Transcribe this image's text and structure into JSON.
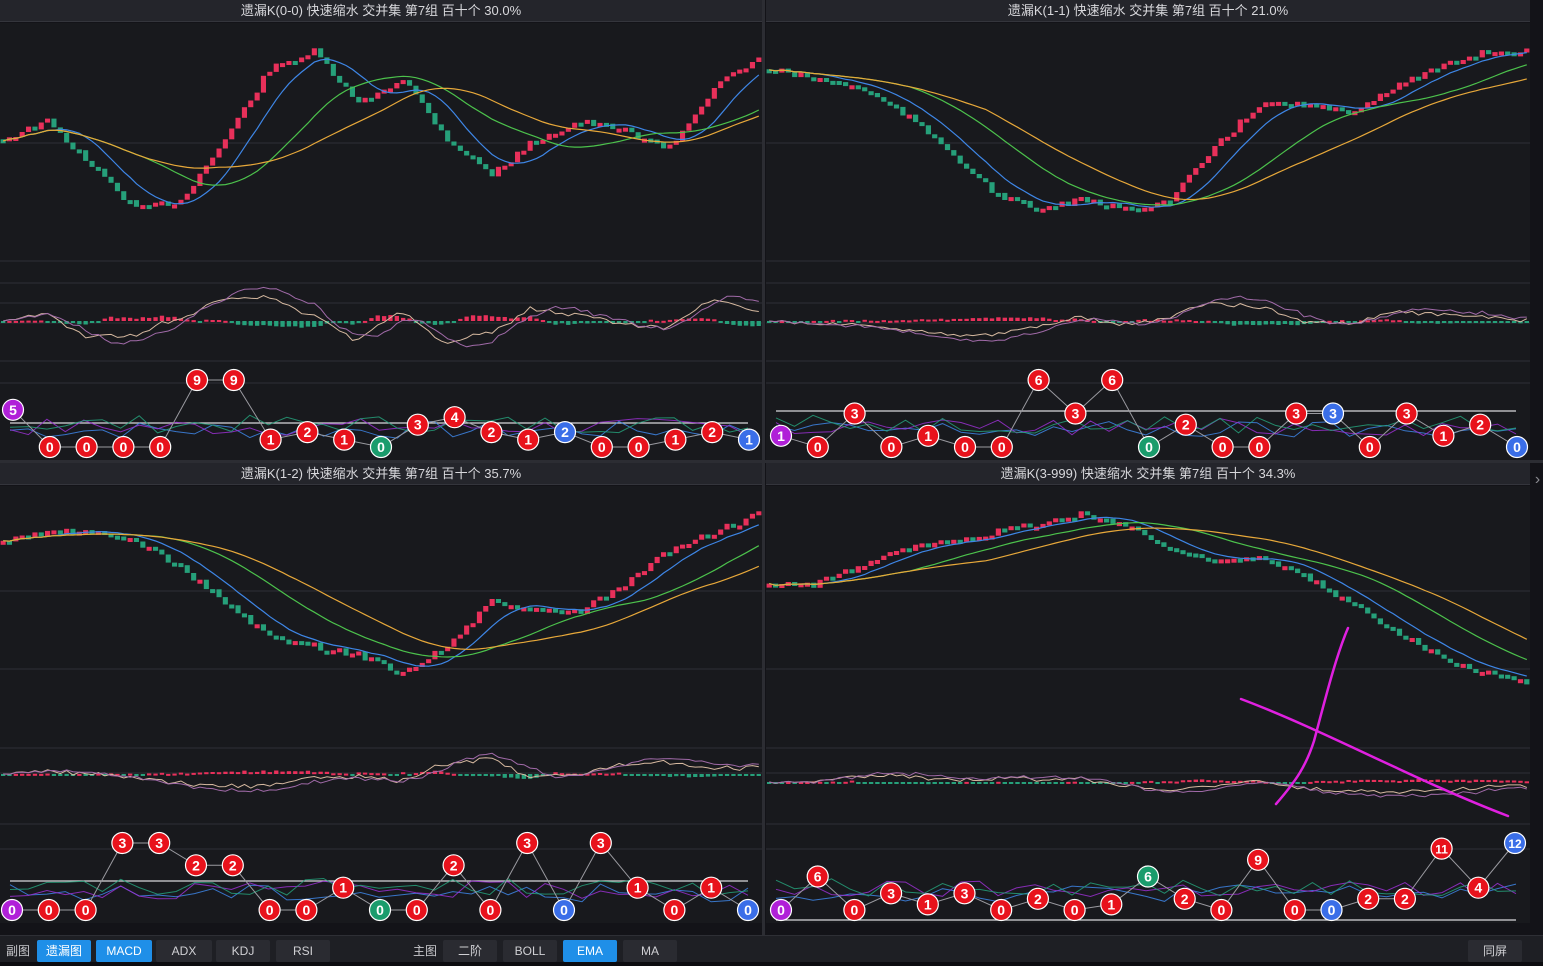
{
  "colors": {
    "up": "#e8305a",
    "down": "#26a07a",
    "ma_fast": "#3e86e6",
    "ma_mid": "#4cc24c",
    "ma_slow": "#e7a83a",
    "dif": "#d6b9a0",
    "dea": "#a06aa8",
    "badge_red": "#e8121c",
    "badge_green": "#1a9c6c",
    "badge_blue": "#3a6ee8",
    "badge_purple": "#b020d8",
    "annotation": "#e020e0"
  },
  "panels": [
    {
      "title": "遗漏K(0-0)  快速缩水  交并集 第7组  百十个  30.0%",
      "badges": [
        {
          "v": "5",
          "c": "purple"
        },
        {
          "v": "0",
          "c": "red"
        },
        {
          "v": "0",
          "c": "red"
        },
        {
          "v": "0",
          "c": "red"
        },
        {
          "v": "0",
          "c": "red"
        },
        {
          "v": "9",
          "c": "red"
        },
        {
          "v": "9",
          "c": "red"
        },
        {
          "v": "1",
          "c": "red"
        },
        {
          "v": "2",
          "c": "red"
        },
        {
          "v": "1",
          "c": "red"
        },
        {
          "v": "0",
          "c": "green"
        },
        {
          "v": "3",
          "c": "red"
        },
        {
          "v": "4",
          "c": "red"
        },
        {
          "v": "2",
          "c": "red"
        },
        {
          "v": "1",
          "c": "red"
        },
        {
          "v": "2",
          "c": "blue"
        },
        {
          "v": "0",
          "c": "red"
        },
        {
          "v": "0",
          "c": "red"
        },
        {
          "v": "1",
          "c": "red"
        },
        {
          "v": "2",
          "c": "red"
        },
        {
          "v": "1",
          "c": "blue"
        }
      ]
    },
    {
      "title": "遗漏K(1-1)  快速缩水  交并集 第7组  百十个  21.0%",
      "badges": [
        {
          "v": "1",
          "c": "purple"
        },
        {
          "v": "0",
          "c": "red"
        },
        {
          "v": "3",
          "c": "red"
        },
        {
          "v": "0",
          "c": "red"
        },
        {
          "v": "1",
          "c": "red"
        },
        {
          "v": "0",
          "c": "red"
        },
        {
          "v": "0",
          "c": "red"
        },
        {
          "v": "6",
          "c": "red"
        },
        {
          "v": "3",
          "c": "red"
        },
        {
          "v": "6",
          "c": "red"
        },
        {
          "v": "0",
          "c": "green"
        },
        {
          "v": "2",
          "c": "red"
        },
        {
          "v": "0",
          "c": "red"
        },
        {
          "v": "0",
          "c": "red"
        },
        {
          "v": "3",
          "c": "red"
        },
        {
          "v": "3",
          "c": "blue"
        },
        {
          "v": "0",
          "c": "red"
        },
        {
          "v": "3",
          "c": "red"
        },
        {
          "v": "1",
          "c": "red"
        },
        {
          "v": "2",
          "c": "red"
        },
        {
          "v": "0",
          "c": "blue"
        }
      ]
    },
    {
      "title": "遗漏K(1-2)  快速缩水  交并集 第7组  百十个  35.7%",
      "badges": [
        {
          "v": "0",
          "c": "purple"
        },
        {
          "v": "0",
          "c": "red"
        },
        {
          "v": "0",
          "c": "red"
        },
        {
          "v": "3",
          "c": "red"
        },
        {
          "v": "3",
          "c": "red"
        },
        {
          "v": "2",
          "c": "red"
        },
        {
          "v": "2",
          "c": "red"
        },
        {
          "v": "0",
          "c": "red"
        },
        {
          "v": "0",
          "c": "red"
        },
        {
          "v": "1",
          "c": "red"
        },
        {
          "v": "0",
          "c": "green"
        },
        {
          "v": "0",
          "c": "red"
        },
        {
          "v": "2",
          "c": "red"
        },
        {
          "v": "0",
          "c": "red"
        },
        {
          "v": "3",
          "c": "red"
        },
        {
          "v": "0",
          "c": "blue"
        },
        {
          "v": "3",
          "c": "red"
        },
        {
          "v": "1",
          "c": "red"
        },
        {
          "v": "0",
          "c": "red"
        },
        {
          "v": "1",
          "c": "red"
        },
        {
          "v": "0",
          "c": "blue"
        }
      ]
    },
    {
      "title": "遗漏K(3-999)  快速缩水  交并集 第7组  百十个  34.3%",
      "badges": [
        {
          "v": "0",
          "c": "purple"
        },
        {
          "v": "6",
          "c": "red"
        },
        {
          "v": "0",
          "c": "red"
        },
        {
          "v": "3",
          "c": "red"
        },
        {
          "v": "1",
          "c": "red"
        },
        {
          "v": "3",
          "c": "red"
        },
        {
          "v": "0",
          "c": "red"
        },
        {
          "v": "2",
          "c": "red"
        },
        {
          "v": "0",
          "c": "red"
        },
        {
          "v": "1",
          "c": "red"
        },
        {
          "v": "6",
          "c": "green"
        },
        {
          "v": "2",
          "c": "red"
        },
        {
          "v": "0",
          "c": "red"
        },
        {
          "v": "9",
          "c": "red"
        },
        {
          "v": "0",
          "c": "red"
        },
        {
          "v": "0",
          "c": "blue"
        },
        {
          "v": "2",
          "c": "red"
        },
        {
          "v": "2",
          "c": "red"
        },
        {
          "v": "11",
          "c": "red"
        },
        {
          "v": "4",
          "c": "red"
        },
        {
          "v": "12",
          "c": "blue"
        }
      ]
    }
  ],
  "toolbar": {
    "sub_label": "副图",
    "sub_buttons": [
      {
        "label": "遗漏图",
        "active": true
      },
      {
        "label": "MACD",
        "active": true
      },
      {
        "label": "ADX",
        "active": false
      },
      {
        "label": "KDJ",
        "active": false
      },
      {
        "label": "RSI",
        "active": false
      }
    ],
    "main_label": "主图",
    "main_buttons": [
      {
        "label": "二阶",
        "active": false
      },
      {
        "label": "BOLL",
        "active": false
      },
      {
        "label": "EMA",
        "active": true
      },
      {
        "label": "MA",
        "active": false
      }
    ],
    "right_button": "同屏"
  },
  "right_arrow_icon": "chevron-right-icon"
}
